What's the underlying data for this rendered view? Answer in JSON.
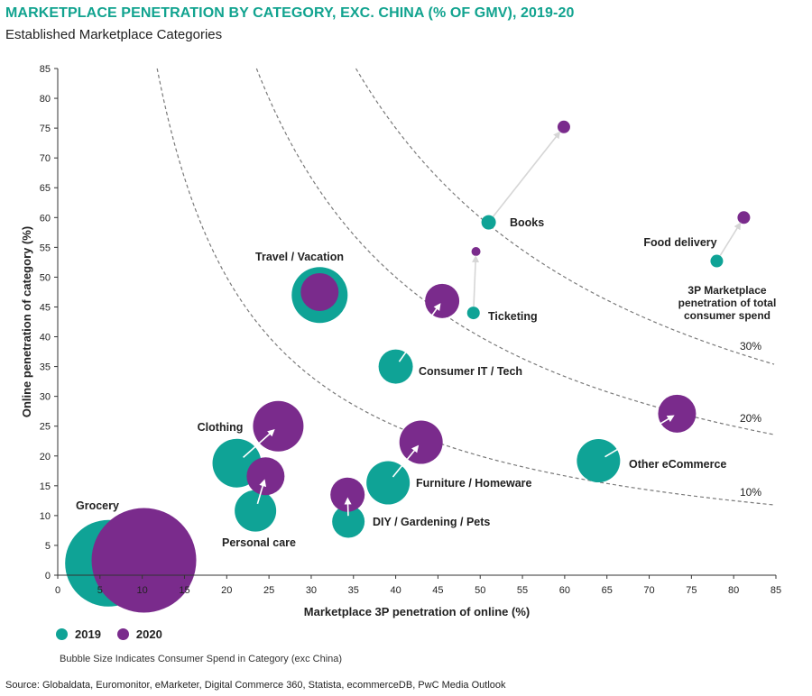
{
  "colors": {
    "y2019": "#0fa396",
    "y2020": "#7a2b8c",
    "title": "#11a38f",
    "arrow": "#d6d6d6"
  },
  "title": "MARKETPLACE PENETRATION BY CATEGORY, EXC. CHINA (% OF GMV), 2019-20",
  "subtitle": "Established Marketplace Categories",
  "legend": {
    "y2019": "2019",
    "y2020": "2020"
  },
  "bubble_note": "Bubble Size Indicates Consumer Spend in Category (exc China)",
  "source": "Source: Globaldata, Euromonitor, eMarketer, Digital Commerce 360, Statista, ecommerceDB, PwC Media Outlook",
  "chart_data": {
    "type": "scatter",
    "title": "MARKETPLACE PENETRATION BY CATEGORY, EXC. CHINA (% OF GMV), 2019-20",
    "xlabel": "Marketplace 3P penetration of online (%)",
    "ylabel": "Online penetration of category (%)",
    "xlim": [
      0,
      85
    ],
    "ylim": [
      0,
      85
    ],
    "xticks": [
      0,
      5,
      10,
      15,
      20,
      25,
      30,
      35,
      40,
      45,
      50,
      55,
      60,
      65,
      70,
      75,
      80,
      85
    ],
    "yticks": [
      0,
      5,
      10,
      15,
      20,
      25,
      30,
      35,
      40,
      45,
      50,
      55,
      60,
      65,
      70,
      75,
      80,
      85
    ],
    "grid": false,
    "curves": [
      {
        "label": "10%",
        "k": 10
      },
      {
        "label": "20%",
        "k": 20
      },
      {
        "label": "30%",
        "k": 30
      }
    ],
    "curves_caption": [
      "3P Marketplace",
      "penetration of total",
      "consumer spend"
    ],
    "series": [
      {
        "name": "2019",
        "color": "#0fa396"
      },
      {
        "name": "2020",
        "color": "#7a2b8c"
      }
    ],
    "categories": [
      {
        "name": "Grocery",
        "p2019": [
          6,
          2
        ],
        "p2020": [
          10.2,
          2.5
        ],
        "size2019": 48,
        "size2020": 58,
        "arrow": false
      },
      {
        "name": "Travel / Vacation",
        "p2019": [
          31,
          47
        ],
        "p2020": [
          31,
          47.5
        ],
        "size2019": 31,
        "size2020": 21,
        "arrow": false
      },
      {
        "name": "Clothing",
        "p2019": [
          21.2,
          18.8
        ],
        "p2020": [
          26.1,
          25
        ],
        "size2019": 27,
        "size2020": 28,
        "arrow": true
      },
      {
        "name": "Personal care",
        "p2019": [
          23.4,
          10.8
        ],
        "p2020": [
          24.6,
          16.6
        ],
        "size2019": 23,
        "size2020": 21,
        "arrow": true
      },
      {
        "name": "DIY / Gardening / Pets",
        "p2019": [
          34.4,
          9
        ],
        "p2020": [
          34.3,
          13.5
        ],
        "size2019": 18,
        "size2020": 19,
        "arrow": true
      },
      {
        "name": "Furniture / Homeware",
        "p2019": [
          39.1,
          15.5
        ],
        "p2020": [
          43,
          22.3
        ],
        "size2019": 24,
        "size2020": 24,
        "arrow": true
      },
      {
        "name": "Consumer IT / Tech",
        "p2019": [
          40,
          35
        ],
        "p2020": [
          45.5,
          46
        ],
        "size2019": 19,
        "size2020": 19,
        "arrow": true
      },
      {
        "name": "Ticketing",
        "p2019": [
          49.2,
          44
        ],
        "p2020": [
          49.5,
          54.3
        ],
        "size2019": 7,
        "size2020": 5,
        "arrow": true
      },
      {
        "name": "Books",
        "p2019": [
          51,
          59.2
        ],
        "p2020": [
          59.9,
          75.2
        ],
        "size2019": 8,
        "size2020": 7,
        "arrow": true
      },
      {
        "name": "Food delivery",
        "p2019": [
          78,
          52.7
        ],
        "p2020": [
          81.2,
          60
        ],
        "size2019": 7,
        "size2020": 7,
        "arrow": true
      },
      {
        "name": "Other eCommerce",
        "p2019": [
          64,
          19.2
        ],
        "p2020": [
          73.3,
          27.1
        ],
        "size2019": 24,
        "size2020": 21,
        "arrow": true
      }
    ]
  }
}
